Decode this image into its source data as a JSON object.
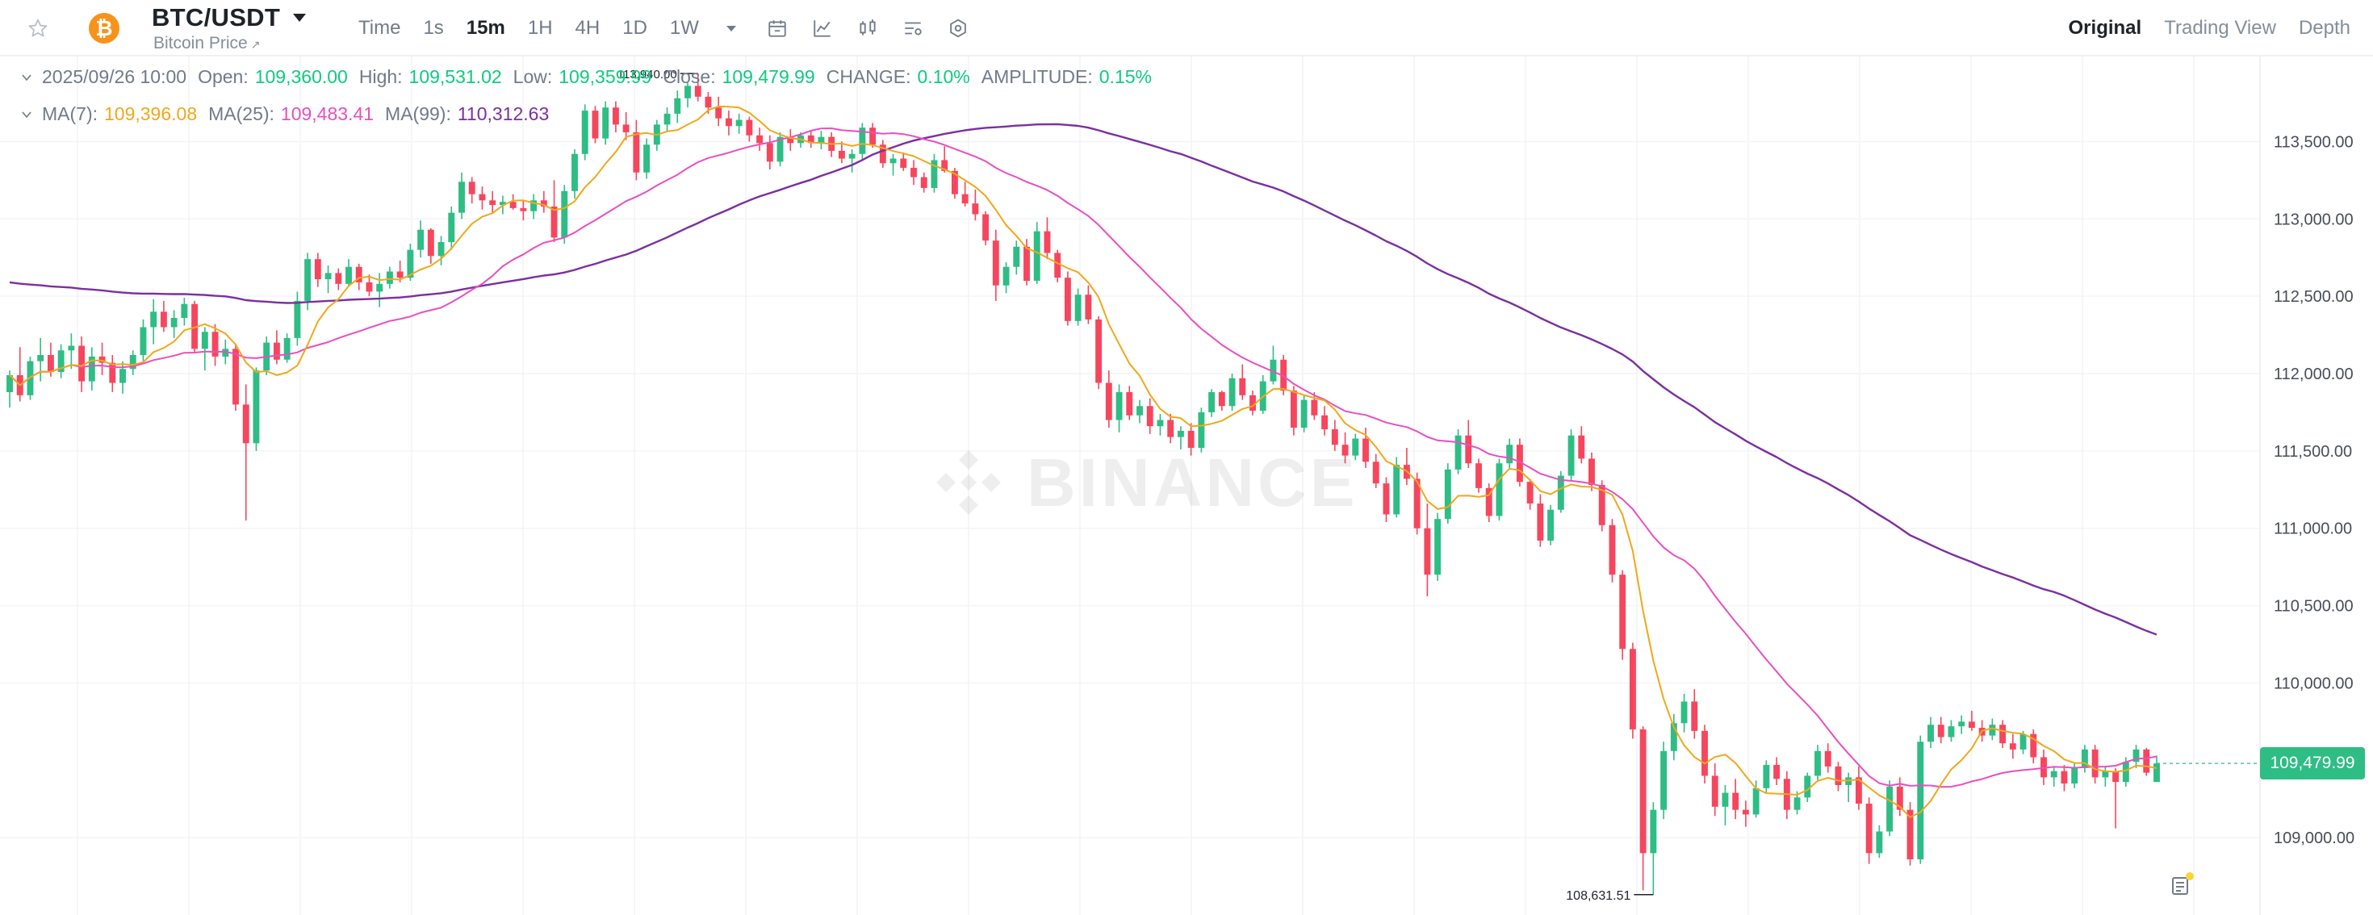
{
  "header": {
    "pair": "BTC/USDT",
    "subtitle": "Bitcoin Price",
    "coin_icon": "bitcoin-icon",
    "intervals": [
      {
        "label": "Time",
        "active": false
      },
      {
        "label": "1s",
        "active": false
      },
      {
        "label": "15m",
        "active": true
      },
      {
        "label": "1H",
        "active": false
      },
      {
        "label": "4H",
        "active": false
      },
      {
        "label": "1D",
        "active": false
      },
      {
        "label": "1W",
        "active": false
      }
    ],
    "tools": [
      "calendar-icon",
      "indicator-icon",
      "chart-type-icon",
      "chart-settings-icon",
      "more-settings-icon"
    ],
    "view_tabs": [
      {
        "label": "Original",
        "active": true
      },
      {
        "label": "Trading View",
        "active": false
      },
      {
        "label": "Depth",
        "active": false
      }
    ]
  },
  "ohlc": {
    "date": "2025/09/26 10:00",
    "open_label": "Open:",
    "open": "109,360.00",
    "high_label": "High:",
    "high": "109,531.02",
    "low_label": "Low:",
    "low": "109,359.99",
    "close_label": "Close:",
    "close": "109,479.99",
    "change_label": "CHANGE:",
    "change": "0.10%",
    "amplitude_label": "AMPLITUDE:",
    "amplitude": "0.15%"
  },
  "ma": {
    "ma7_label": "MA(7):",
    "ma7": "109,396.08",
    "ma25_label": "MA(25):",
    "ma25": "109,483.41",
    "ma99_label": "MA(99):",
    "ma99": "110,312.63"
  },
  "colors": {
    "up": "#2ebd85",
    "down": "#f6465d",
    "ma7": "#f0a81a",
    "ma25": "#e84fc0",
    "ma99": "#7b2fa0",
    "grid": "#f3f4f6",
    "axis_text": "#474d57"
  },
  "watermark": "BINANCE",
  "price_axis": {
    "ticks": [
      "113,500.00",
      "113,000.00",
      "112,500.00",
      "112,000.00",
      "111,500.00",
      "111,000.00",
      "110,500.00",
      "110,000.00",
      "109,000.00"
    ],
    "last_price": "109,479.99"
  },
  "annotations": {
    "high_marker": "113,940.00",
    "low_marker": "108,631.51"
  },
  "chart_data": {
    "type": "candlestick",
    "interval": "15m",
    "ylim": [
      108500,
      114050
    ],
    "candles_ohlc": [
      [
        111880,
        112020,
        111780,
        111990
      ],
      [
        111990,
        112170,
        111820,
        111860
      ],
      [
        111860,
        112110,
        111830,
        112080
      ],
      [
        112080,
        112230,
        111950,
        112120
      ],
      [
        112120,
        112200,
        111980,
        112010
      ],
      [
        112010,
        112190,
        111970,
        112150
      ],
      [
        112150,
        112260,
        112030,
        112180
      ],
      [
        112180,
        112240,
        111880,
        111950
      ],
      [
        111950,
        112170,
        111890,
        112110
      ],
      [
        112110,
        112200,
        111990,
        112070
      ],
      [
        112070,
        112120,
        111880,
        111940
      ],
      [
        111940,
        112080,
        111870,
        112030
      ],
      [
        112030,
        112150,
        111990,
        112120
      ],
      [
        112120,
        112350,
        112080,
        112300
      ],
      [
        112300,
        112480,
        112190,
        112400
      ],
      [
        112400,
        112470,
        112270,
        112300
      ],
      [
        112300,
        112410,
        112230,
        112360
      ],
      [
        112360,
        112490,
        112310,
        112450
      ],
      [
        112450,
        112470,
        112130,
        112160
      ],
      [
        112160,
        112300,
        112020,
        112270
      ],
      [
        112270,
        112320,
        112050,
        112110
      ],
      [
        112110,
        112220,
        112060,
        112160
      ],
      [
        112160,
        112190,
        111760,
        111800
      ],
      [
        111800,
        111930,
        111050,
        111550
      ],
      [
        111550,
        112040,
        111500,
        112020
      ],
      [
        112020,
        112240,
        111990,
        112200
      ],
      [
        112200,
        112280,
        112060,
        112090
      ],
      [
        112090,
        112260,
        112070,
        112230
      ],
      [
        112230,
        112530,
        112180,
        112470
      ],
      [
        112470,
        112780,
        112410,
        112740
      ],
      [
        112740,
        112780,
        112560,
        112610
      ],
      [
        112610,
        112700,
        112520,
        112650
      ],
      [
        112650,
        112680,
        112540,
        112580
      ],
      [
        112580,
        112740,
        112560,
        112690
      ],
      [
        112690,
        112710,
        112540,
        112590
      ],
      [
        112590,
        112640,
        112500,
        112530
      ],
      [
        112530,
        112650,
        112430,
        112580
      ],
      [
        112580,
        112690,
        112550,
        112660
      ],
      [
        112660,
        112730,
        112590,
        112620
      ],
      [
        112620,
        112840,
        112600,
        112800
      ],
      [
        112800,
        112990,
        112750,
        112930
      ],
      [
        112930,
        112940,
        112710,
        112760
      ],
      [
        112760,
        112890,
        112700,
        112850
      ],
      [
        112850,
        113080,
        112800,
        113040
      ],
      [
        113040,
        113300,
        113000,
        113240
      ],
      [
        113240,
        113270,
        113100,
        113160
      ],
      [
        113160,
        113210,
        113060,
        113120
      ],
      [
        113120,
        113180,
        113040,
        113090
      ],
      [
        113090,
        113150,
        113030,
        113110
      ],
      [
        113110,
        113160,
        113060,
        113070
      ],
      [
        113070,
        113120,
        112990,
        113050
      ],
      [
        113050,
        113160,
        113000,
        113120
      ],
      [
        113120,
        113180,
        113040,
        113080
      ],
      [
        113080,
        113250,
        112850,
        112880
      ],
      [
        112880,
        113220,
        112840,
        113180
      ],
      [
        113180,
        113450,
        113130,
        113420
      ],
      [
        113420,
        113740,
        113380,
        113700
      ],
      [
        113700,
        113730,
        113490,
        113520
      ],
      [
        113520,
        113760,
        113480,
        113720
      ],
      [
        113720,
        113760,
        113560,
        113610
      ],
      [
        113610,
        113690,
        113510,
        113560
      ],
      [
        113560,
        113640,
        113250,
        113300
      ],
      [
        113300,
        113520,
        113260,
        113480
      ],
      [
        113480,
        113640,
        113440,
        113610
      ],
      [
        113610,
        113720,
        113560,
        113680
      ],
      [
        113680,
        113830,
        113620,
        113780
      ],
      [
        113780,
        113880,
        113720,
        113860
      ],
      [
        113860,
        113940,
        113760,
        113790
      ],
      [
        113790,
        113820,
        113680,
        113720
      ],
      [
        113720,
        113790,
        113600,
        113650
      ],
      [
        113650,
        113700,
        113540,
        113600
      ],
      [
        113600,
        113680,
        113550,
        113640
      ],
      [
        113640,
        113660,
        113500,
        113540
      ],
      [
        113540,
        113590,
        113440,
        113490
      ],
      [
        113490,
        113540,
        113320,
        113370
      ],
      [
        113370,
        113560,
        113340,
        113530
      ],
      [
        113530,
        113580,
        113440,
        113490
      ],
      [
        113490,
        113560,
        113460,
        113540
      ],
      [
        113540,
        113570,
        113460,
        113490
      ],
      [
        113490,
        113570,
        113450,
        113530
      ],
      [
        113530,
        113560,
        113400,
        113440
      ],
      [
        113440,
        113500,
        113360,
        113390
      ],
      [
        113390,
        113450,
        113300,
        113420
      ],
      [
        113420,
        113620,
        113380,
        113590
      ],
      [
        113590,
        113620,
        113460,
        113480
      ],
      [
        113480,
        113510,
        113330,
        113360
      ],
      [
        113360,
        113420,
        113280,
        113390
      ],
      [
        113390,
        113430,
        113310,
        113330
      ],
      [
        113330,
        113380,
        113220,
        113270
      ],
      [
        113270,
        113300,
        113170,
        113200
      ],
      [
        113200,
        113420,
        113170,
        113380
      ],
      [
        113380,
        113470,
        113300,
        113310
      ],
      [
        113310,
        113330,
        113130,
        113160
      ],
      [
        113160,
        113240,
        113080,
        113100
      ],
      [
        113100,
        113190,
        112990,
        113030
      ],
      [
        113030,
        113050,
        112830,
        112860
      ],
      [
        112860,
        112930,
        112470,
        112570
      ],
      [
        112570,
        112720,
        112520,
        112690
      ],
      [
        112690,
        112860,
        112640,
        112820
      ],
      [
        112820,
        112870,
        112570,
        112600
      ],
      [
        112600,
        112980,
        112580,
        112920
      ],
      [
        112920,
        113010,
        112740,
        112780
      ],
      [
        112780,
        112800,
        112590,
        112620
      ],
      [
        112620,
        112660,
        112310,
        112340
      ],
      [
        112340,
        112550,
        112310,
        112510
      ],
      [
        112510,
        112570,
        112320,
        112350
      ],
      [
        112350,
        112370,
        111900,
        111940
      ],
      [
        111940,
        112020,
        111650,
        111700
      ],
      [
        111700,
        111930,
        111620,
        111880
      ],
      [
        111880,
        111920,
        111700,
        111730
      ],
      [
        111730,
        111830,
        111680,
        111790
      ],
      [
        111790,
        111840,
        111610,
        111660
      ],
      [
        111660,
        111740,
        111600,
        111700
      ],
      [
        111700,
        111740,
        111550,
        111590
      ],
      [
        111590,
        111660,
        111510,
        111630
      ],
      [
        111630,
        111680,
        111470,
        111520
      ],
      [
        111520,
        111780,
        111490,
        111750
      ],
      [
        111750,
        111900,
        111720,
        111880
      ],
      [
        111880,
        111890,
        111760,
        111790
      ],
      [
        111790,
        112000,
        111760,
        111970
      ],
      [
        111970,
        112060,
        111830,
        111860
      ],
      [
        111860,
        111890,
        111730,
        111760
      ],
      [
        111760,
        111990,
        111740,
        111950
      ],
      [
        111950,
        112180,
        111930,
        112090
      ],
      [
        112090,
        112120,
        111860,
        111890
      ],
      [
        111890,
        111920,
        111600,
        111650
      ],
      [
        111650,
        111860,
        111620,
        111830
      ],
      [
        111830,
        111880,
        111700,
        111730
      ],
      [
        111730,
        111790,
        111600,
        111640
      ],
      [
        111640,
        111700,
        111500,
        111540
      ],
      [
        111540,
        111620,
        111420,
        111470
      ],
      [
        111470,
        111610,
        111440,
        111580
      ],
      [
        111580,
        111650,
        111390,
        111430
      ],
      [
        111430,
        111480,
        111260,
        111290
      ],
      [
        111290,
        111330,
        111040,
        111090
      ],
      [
        111090,
        111460,
        111070,
        111410
      ],
      [
        111410,
        111520,
        111280,
        111320
      ],
      [
        111320,
        111360,
        110960,
        111000
      ],
      [
        111000,
        111160,
        110560,
        110700
      ],
      [
        110700,
        111100,
        110660,
        111060
      ],
      [
        111060,
        111420,
        111030,
        111380
      ],
      [
        111380,
        111640,
        111350,
        111600
      ],
      [
        111600,
        111700,
        111390,
        111420
      ],
      [
        111420,
        111450,
        111230,
        111260
      ],
      [
        111260,
        111290,
        111040,
        111080
      ],
      [
        111080,
        111450,
        111050,
        111420
      ],
      [
        111420,
        111580,
        111390,
        111540
      ],
      [
        111540,
        111580,
        111270,
        111300
      ],
      [
        111300,
        111320,
        111120,
        111160
      ],
      [
        111160,
        111220,
        110880,
        110920
      ],
      [
        110920,
        111150,
        110890,
        111120
      ],
      [
        111120,
        111370,
        111100,
        111340
      ],
      [
        111340,
        111640,
        111310,
        111600
      ],
      [
        111600,
        111660,
        111420,
        111450
      ],
      [
        111450,
        111490,
        111240,
        111280
      ],
      [
        111280,
        111310,
        110980,
        111020
      ],
      [
        111020,
        111060,
        110650,
        110700
      ],
      [
        110700,
        110730,
        110150,
        110220
      ],
      [
        110220,
        110260,
        109640,
        109700
      ],
      [
        109700,
        109720,
        108660,
        108900
      ],
      [
        108900,
        109230,
        108631.51,
        109180
      ],
      [
        109180,
        109620,
        109120,
        109560
      ],
      [
        109560,
        109800,
        109500,
        109740
      ],
      [
        109740,
        109930,
        109680,
        109880
      ],
      [
        109880,
        109960,
        109640,
        109690
      ],
      [
        109690,
        109730,
        109350,
        109400
      ],
      [
        109400,
        109480,
        109140,
        109200
      ],
      [
        109200,
        109340,
        109080,
        109290
      ],
      [
        109290,
        109380,
        109120,
        109180
      ],
      [
        109180,
        109240,
        109070,
        109150
      ],
      [
        109150,
        109370,
        109130,
        109320
      ],
      [
        109320,
        109500,
        109290,
        109470
      ],
      [
        109470,
        109520,
        109340,
        109380
      ],
      [
        109380,
        109430,
        109120,
        109180
      ],
      [
        109180,
        109300,
        109150,
        109260
      ],
      [
        109260,
        109420,
        109230,
        109400
      ],
      [
        109400,
        109600,
        109370,
        109560
      ],
      [
        109560,
        109610,
        109420,
        109460
      ],
      [
        109460,
        109490,
        109300,
        109340
      ],
      [
        109340,
        109420,
        109230,
        109390
      ],
      [
        109390,
        109460,
        109180,
        109220
      ],
      [
        109220,
        109260,
        108830,
        108900
      ],
      [
        108900,
        109080,
        108870,
        109040
      ],
      [
        109040,
        109370,
        109010,
        109330
      ],
      [
        109330,
        109390,
        109140,
        109180
      ],
      [
        109180,
        109230,
        108820,
        108860
      ],
      [
        108860,
        109660,
        108830,
        109620
      ],
      [
        109620,
        109780,
        109580,
        109730
      ],
      [
        109730,
        109780,
        109610,
        109650
      ],
      [
        109650,
        109760,
        109620,
        109720
      ],
      [
        109720,
        109790,
        109670,
        109750
      ],
      [
        109750,
        109820,
        109690,
        109710
      ],
      [
        109710,
        109760,
        109620,
        109660
      ],
      [
        109660,
        109770,
        109630,
        109730
      ],
      [
        109730,
        109760,
        109580,
        109610
      ],
      [
        109610,
        109670,
        109510,
        109570
      ],
      [
        109570,
        109690,
        109540,
        109670
      ],
      [
        109670,
        109700,
        109480,
        109520
      ],
      [
        109520,
        109570,
        109340,
        109390
      ],
      [
        109390,
        109460,
        109330,
        109430
      ],
      [
        109430,
        109470,
        109300,
        109350
      ],
      [
        109350,
        109480,
        109320,
        109450
      ],
      [
        109450,
        109600,
        109420,
        109570
      ],
      [
        109570,
        109600,
        109350,
        109390
      ],
      [
        109390,
        109460,
        109330,
        109430
      ],
      [
        109430,
        109450,
        109060,
        109360
      ],
      [
        109360,
        109520,
        109330,
        109490
      ],
      [
        109490,
        109600,
        109450,
        109570
      ],
      [
        109570,
        109580,
        109400,
        109420
      ],
      [
        109360,
        109531.02,
        109359.99,
        109479.99
      ]
    ],
    "ma7_start_end": [
      "111,900",
      "109,396.08"
    ],
    "ma99_range": [
      "112,600",
      "110,312.63"
    ]
  }
}
